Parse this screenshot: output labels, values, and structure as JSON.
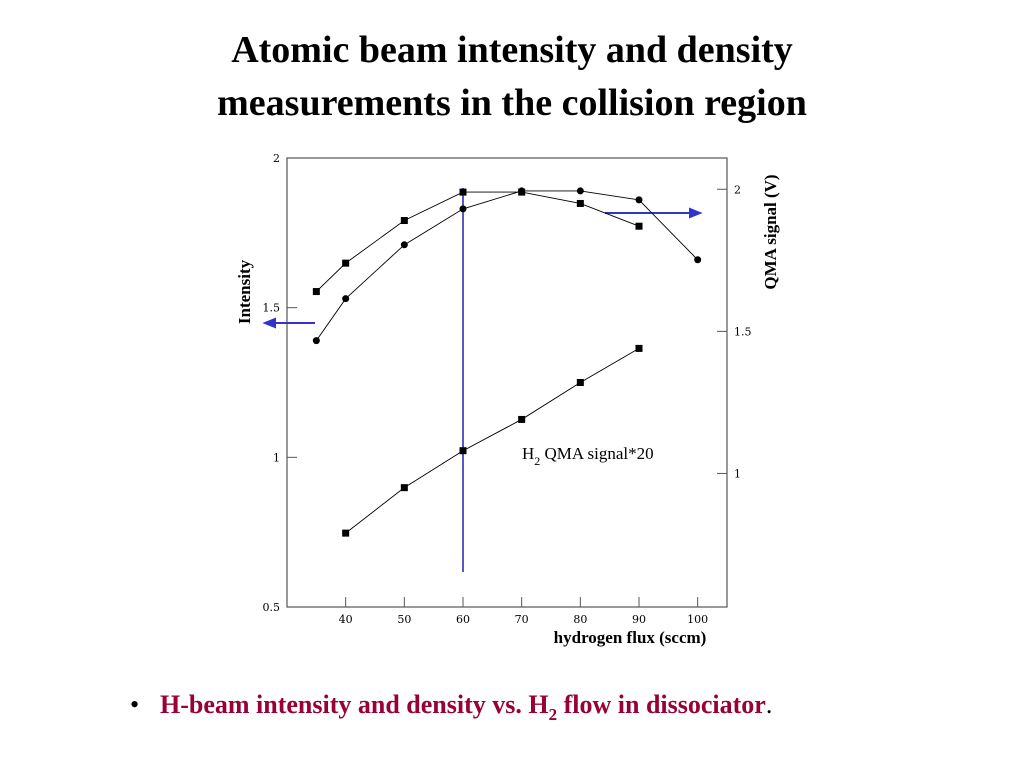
{
  "title": [
    "Atomic beam intensity and density",
    "measurements in the collision region"
  ],
  "bullet": [
    "H-beam intensity and density vs. H",
    "2",
    " flow in dissociator",
    "."
  ],
  "chart_data": {
    "type": "line",
    "x_label": "hydrogen flux (sccm)",
    "y_label": "Intensity",
    "y2_label": "QMA signal (V)",
    "xlim": [
      30,
      105
    ],
    "xticks": [
      40,
      50,
      60,
      70,
      80,
      90,
      100
    ],
    "ylim": [
      0.5,
      2
    ],
    "yticks": [
      0.5,
      1,
      1.5,
      2
    ],
    "y2lim": [
      0.53,
      2.11
    ],
    "y2ticks": [
      1,
      1.5,
      2
    ],
    "vline_x": 60,
    "annotation": [
      "H",
      "2",
      " QMA signal*20"
    ],
    "series": [
      {
        "marker": "circle",
        "color": "#000000",
        "x": [
          35,
          40,
          50,
          60,
          70,
          80,
          90,
          100
        ],
        "values": [
          1.39,
          1.53,
          1.71,
          1.83,
          1.89,
          1.89,
          1.86,
          1.66
        ]
      },
      {
        "marker": "square",
        "color": "#000000",
        "axis": "y2",
        "x": [
          35,
          40,
          50,
          60,
          70,
          80,
          90
        ],
        "values": [
          1.64,
          1.74,
          1.89,
          1.99,
          1.99,
          1.95,
          1.87
        ]
      },
      {
        "marker": "square",
        "color": "#000000",
        "axis": "y2",
        "x": [
          40,
          50,
          60,
          70,
          80,
          90
        ],
        "values": [
          0.79,
          0.95,
          1.08,
          1.19,
          1.32,
          1.44
        ]
      }
    ]
  }
}
